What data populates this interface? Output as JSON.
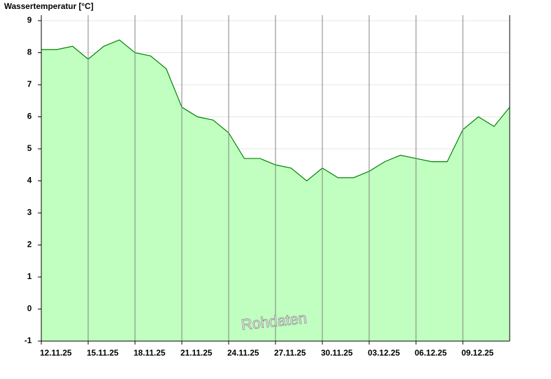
{
  "chart_data": {
    "type": "area",
    "title": "Wassertemperatur [°C]",
    "annotation": "Rohdaten",
    "categories": [
      "12.11.25",
      null,
      null,
      "15.11.25",
      null,
      null,
      "18.11.25",
      null,
      null,
      "21.11.25",
      null,
      null,
      "24.11.25",
      null,
      null,
      "27.11.25",
      null,
      null,
      "30.11.25",
      null,
      null,
      "03.12.25",
      null,
      null,
      "06.12.25",
      null,
      null,
      "09.12.25",
      null,
      null,
      null
    ],
    "values": [
      8.1,
      8.1,
      8.2,
      7.8,
      8.2,
      8.4,
      8.0,
      7.9,
      7.5,
      6.3,
      6.0,
      5.9,
      5.5,
      4.7,
      4.7,
      4.5,
      4.4,
      4.0,
      4.4,
      4.1,
      4.1,
      4.3,
      4.6,
      4.8,
      4.7,
      4.6,
      4.6,
      5.6,
      6.0,
      5.7,
      6.3
    ],
    "color": "#008000",
    "fill": "#c0ffc0",
    "ylim": [
      -1,
      9
    ],
    "yticks": [
      -1,
      0,
      1,
      2,
      3,
      4,
      5,
      6,
      7,
      8,
      9
    ],
    "grid": true
  }
}
